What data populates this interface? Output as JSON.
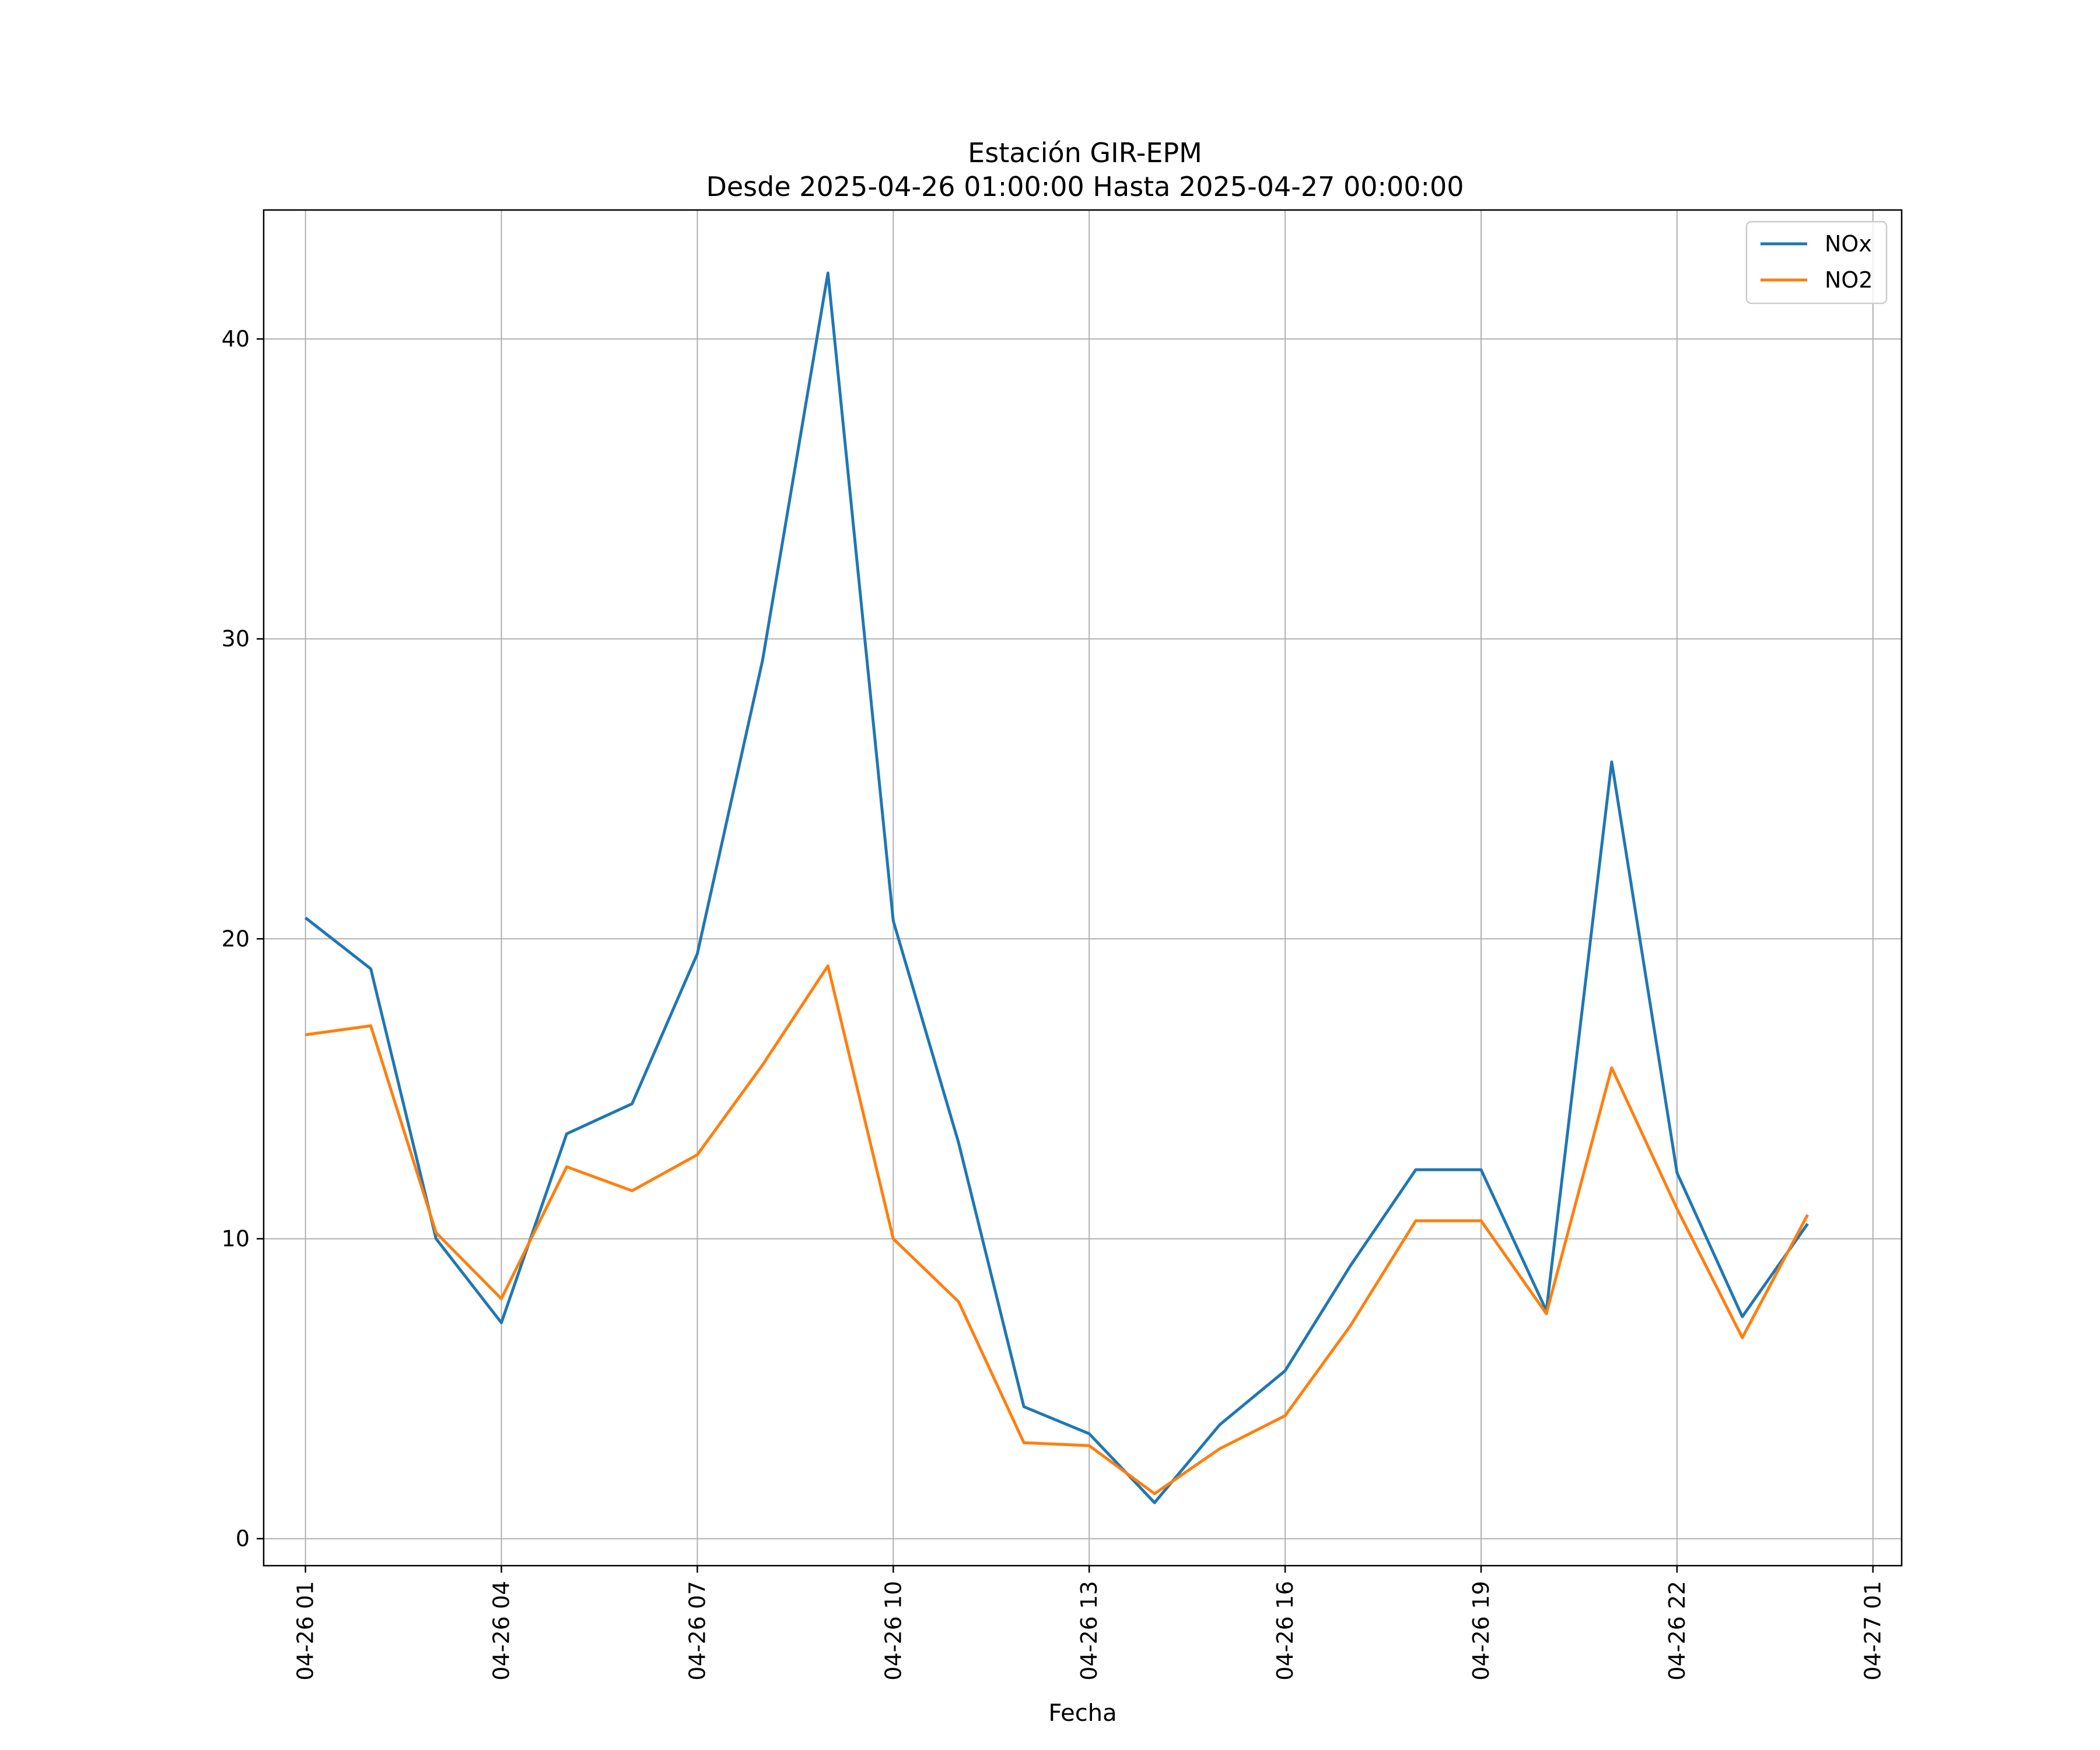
{
  "chart_data": {
    "type": "line",
    "title": "Estación GIR-EPM",
    "subtitle": "Desde 2025-04-26 01:00:00 Hasta 2025-04-27 00:00:00",
    "xlabel": "Fecha",
    "ylabel": "",
    "x": [
      "04-26 01",
      "04-26 02",
      "04-26 03",
      "04-26 04",
      "04-26 05",
      "04-26 06",
      "04-26 07",
      "04-26 08",
      "04-26 09",
      "04-26 10",
      "04-26 11",
      "04-26 12",
      "04-26 13",
      "04-26 14",
      "04-26 15",
      "04-26 16",
      "04-26 17",
      "04-26 18",
      "04-26 19",
      "04-26 20",
      "04-26 21",
      "04-26 22",
      "04-26 23",
      "04-27 00"
    ],
    "x_ticks": [
      "04-26 01",
      "04-26 04",
      "04-26 07",
      "04-26 10",
      "04-26 13",
      "04-26 16",
      "04-26 19",
      "04-26 22",
      "04-27 01"
    ],
    "x_range": [
      "04-26 00",
      "04-27 01"
    ],
    "y_ticks": [
      0,
      10,
      20,
      30,
      40
    ],
    "ylim": [
      -0.9,
      44.3
    ],
    "grid": true,
    "legend_position": "top-right",
    "series": [
      {
        "name": "NOx",
        "color": "#1f77b4",
        "values": [
          20.7,
          19.0,
          10.0,
          7.2,
          13.5,
          14.5,
          19.5,
          29.3,
          42.2,
          20.6,
          13.2,
          4.4,
          3.5,
          1.2,
          3.8,
          5.6,
          9.1,
          12.3,
          12.3,
          7.6,
          25.9,
          12.2,
          7.4,
          10.5
        ]
      },
      {
        "name": "NO2",
        "color": "#ff7f0e",
        "values": [
          16.8,
          17.1,
          10.2,
          8.0,
          12.4,
          11.6,
          12.8,
          15.8,
          19.1,
          10.0,
          7.9,
          3.2,
          3.1,
          1.5,
          3.0,
          4.1,
          7.1,
          10.6,
          10.6,
          7.5,
          15.7,
          11.0,
          6.7,
          10.8
        ]
      }
    ]
  }
}
